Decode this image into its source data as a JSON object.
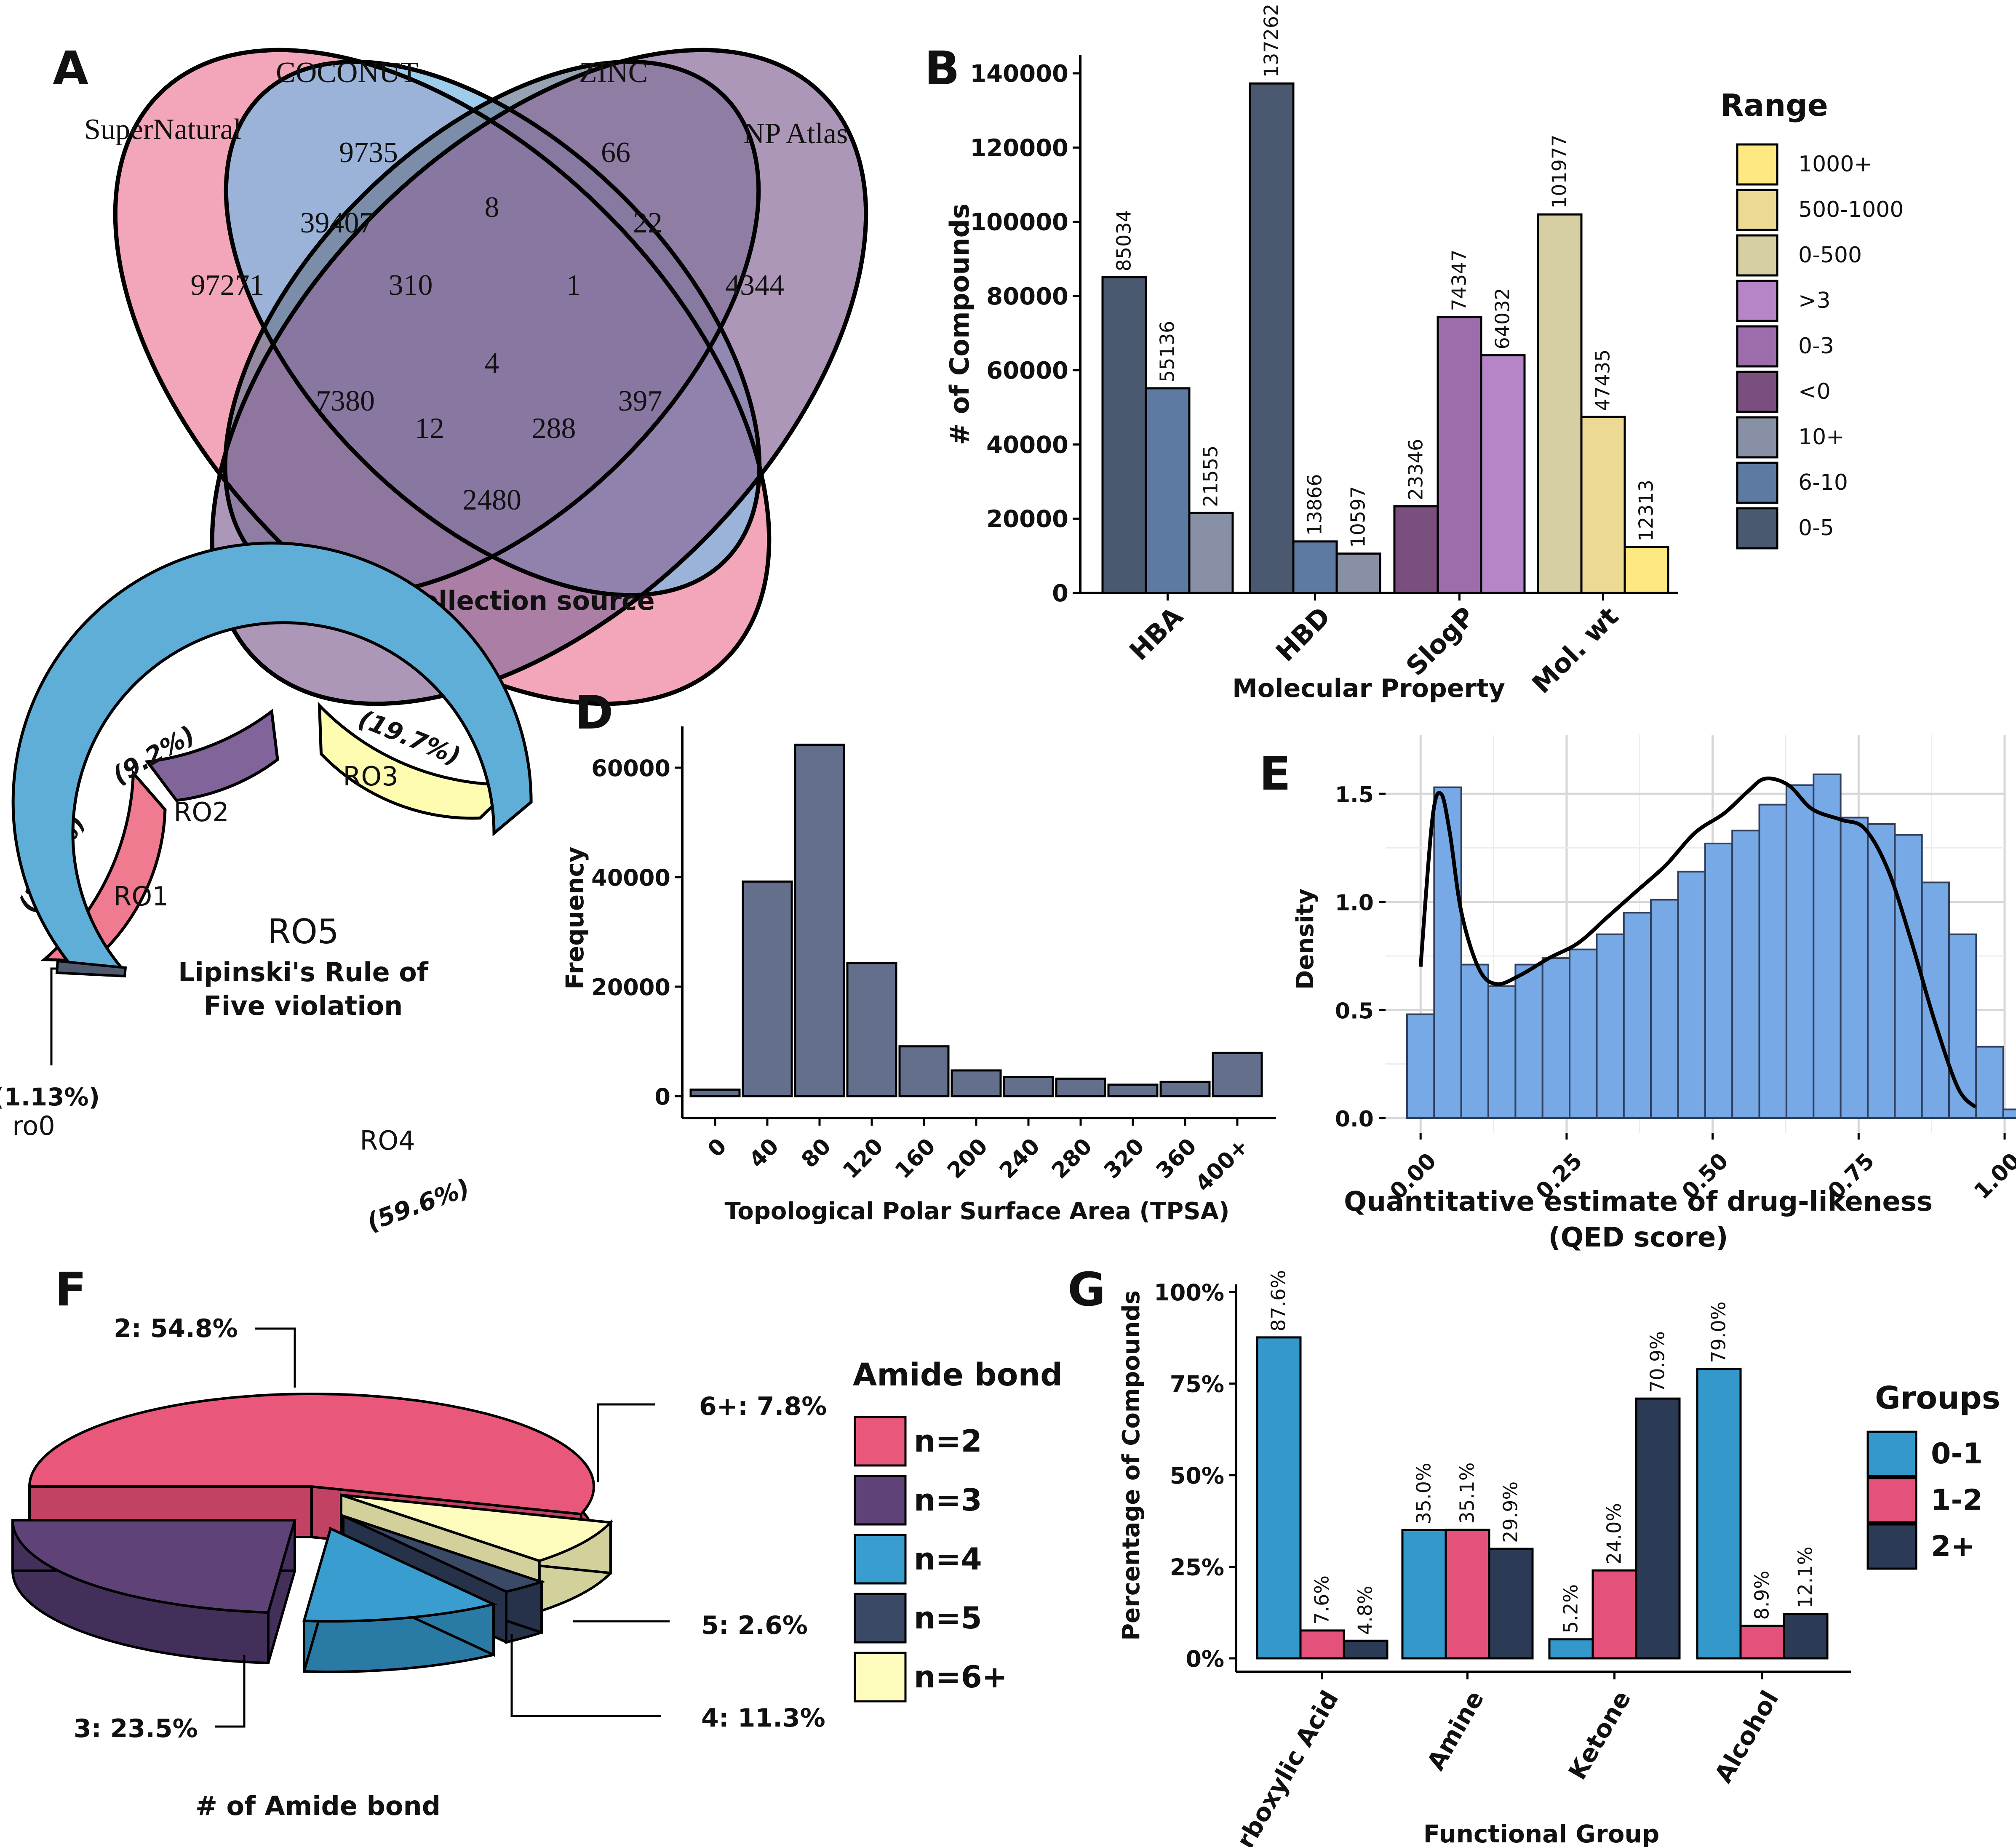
{
  "panels": {
    "A": {
      "letter": "A",
      "xlabel": "Data collection source",
      "sets": [
        {
          "name": "SuperNatural",
          "color": "#f08ca6"
        },
        {
          "name": "COCONUT",
          "color": "#78b9e3"
        },
        {
          "name": "ZINC",
          "color": "#6f7e96"
        },
        {
          "name": "NP Atlas",
          "color": "#8d6f9d"
        }
      ],
      "regions": [
        {
          "label": "SuperNatural only",
          "value": "97271"
        },
        {
          "label": "COCONUT only",
          "value": "9735"
        },
        {
          "label": "ZINC only",
          "value": "66"
        },
        {
          "label": "NP Atlas only",
          "value": "4344"
        },
        {
          "label": "SN+COCONUT",
          "value": "39407"
        },
        {
          "label": "COCONUT+ZINC",
          "value": "8"
        },
        {
          "label": "ZINC+NPA",
          "value": "22"
        },
        {
          "label": "SN+COCONUT+ZINC",
          "value": "310"
        },
        {
          "label": "COCONUT+ZINC+NPA",
          "value": "1"
        },
        {
          "label": "All four",
          "value": "4"
        },
        {
          "label": "SN+ZINC",
          "value": "7380"
        },
        {
          "label": "COCONUT+NPA",
          "value": "397"
        },
        {
          "label": "SN+ZINC+NPA",
          "value": "12"
        },
        {
          "label": "SN+COCONUT+NPA",
          "value": "288"
        },
        {
          "label": "SN+NPA",
          "value": "2480"
        }
      ]
    },
    "B": {
      "letter": "B",
      "legend_title": "Range",
      "legend": [
        {
          "label": "1000+",
          "color": "#fde881"
        },
        {
          "label": "500-1000",
          "color": "#ecd993"
        },
        {
          "label": "0-500",
          "color": "#d6cfa4"
        },
        {
          "label": ">3",
          "color": "#b585c8"
        },
        {
          "label": "0-3",
          "color": "#9d6cad"
        },
        {
          "label": "<0",
          "color": "#7a4f7e"
        },
        {
          "label": "10+",
          "color": "#8790a4"
        },
        {
          "label": "6-10",
          "color": "#5d7ba2"
        },
        {
          "label": "0-5",
          "color": "#4a5970"
        }
      ]
    },
    "C": {
      "letter": "C",
      "center_title": "RO5",
      "center_sub1": "Lipinski's Rule of",
      "center_sub2": "Five violation",
      "segments": [
        {
          "label": "RO1",
          "pct": "(10.4%)",
          "color": "#f07a8f"
        },
        {
          "label": "RO2",
          "pct": "(9.2%)",
          "color": "#80649a"
        },
        {
          "label": "RO3",
          "pct": "(19.7%)",
          "color": "#fdfcb0"
        },
        {
          "label": "RO4",
          "pct": "(59.6%)",
          "color": "#5eaed8"
        },
        {
          "label": "ro0",
          "pct": "(1.13%)",
          "color": "#4f5a6f"
        }
      ]
    },
    "D": {
      "letter": "D"
    },
    "E": {
      "letter": "E"
    },
    "F": {
      "letter": "F",
      "xlabel": "# of Amide bond",
      "legend_title": "Amide bond",
      "slices": [
        {
          "legend": "n=2",
          "label": "2: 54.8%",
          "value": 54.8,
          "color": "#e9587a"
        },
        {
          "legend": "n=3",
          "label": "3: 23.5%",
          "value": 23.5,
          "color": "#5e4278"
        },
        {
          "legend": "n=4",
          "label": "4: 11.3%",
          "value": 11.3,
          "color": "#3a9dd0"
        },
        {
          "legend": "n=5",
          "label": "5: 2.6%",
          "value": 2.6,
          "color": "#3a4a66"
        },
        {
          "legend": "n=6+",
          "label": "6+: 7.8%",
          "value": 7.8,
          "color": "#fdfcbd"
        }
      ]
    },
    "G": {
      "letter": "G",
      "legend_title": "Groups"
    }
  },
  "chart_data": [
    {
      "panel": "B",
      "type": "bar",
      "xlabel": "Molecular Property",
      "ylabel": "# of Compounds",
      "ylim": [
        0,
        145000
      ],
      "yticks": [
        0,
        20000,
        40000,
        60000,
        80000,
        100000,
        120000,
        140000
      ],
      "groups": [
        {
          "name": "HBA",
          "bars": [
            {
              "range": "0-5",
              "value": 85034,
              "color": "#4a5970"
            },
            {
              "range": "6-10",
              "value": 55136,
              "color": "#5d7ba2"
            },
            {
              "range": "10+",
              "value": 21555,
              "color": "#8790a4"
            }
          ]
        },
        {
          "name": "HBD",
          "bars": [
            {
              "range": "0-5",
              "value": 137262,
              "color": "#4a5970"
            },
            {
              "range": "6-10",
              "value": 13866,
              "color": "#5d7ba2"
            },
            {
              "range": "10+",
              "value": 10597,
              "color": "#8790a4"
            }
          ]
        },
        {
          "name": "SlogP",
          "bars": [
            {
              "range": "<0",
              "value": 23346,
              "color": "#7a4f7e"
            },
            {
              "range": "0-3",
              "value": 74347,
              "color": "#9d6cad"
            },
            {
              "range": ">3",
              "value": 64032,
              "color": "#b585c8"
            }
          ]
        },
        {
          "name": "Mol. wt",
          "bars": [
            {
              "range": "0-500",
              "value": 101977,
              "color": "#d6cfa4"
            },
            {
              "range": "500-1000",
              "value": 47435,
              "color": "#ecd993"
            },
            {
              "range": "1000+",
              "value": 12313,
              "color": "#fde881"
            }
          ]
        }
      ]
    },
    {
      "panel": "D",
      "type": "bar",
      "xlabel": "Topological Polar Surface Area (TPSA)",
      "ylabel": "Frequency",
      "ylim": [
        0,
        67000
      ],
      "yticks": [
        0,
        20000,
        40000,
        60000
      ],
      "categories": [
        "0",
        "40",
        "80",
        "120",
        "160",
        "200",
        "240",
        "280",
        "320",
        "360",
        "400+"
      ],
      "values": [
        1200,
        39200,
        64200,
        24300,
        9100,
        4700,
        3500,
        3200,
        2100,
        2600,
        7900
      ],
      "color": "#636f8b"
    },
    {
      "panel": "E",
      "type": "bar",
      "xlabel": "Quantitative estimate of drug-likeness",
      "xlabel2": "(QED score)",
      "ylabel": "Density",
      "xlim": [
        -0.06,
        1.0
      ],
      "ylim": [
        0,
        1.65
      ],
      "xticks": [
        "0.00",
        "0.25",
        "0.50",
        "0.75",
        "1.00"
      ],
      "yticks": [
        "0.0",
        "0.5",
        "1.0",
        "1.5"
      ],
      "grid": true,
      "bin_width": 0.0464,
      "bin_start": -0.0232,
      "values": [
        0.48,
        1.53,
        0.71,
        0.61,
        0.71,
        0.74,
        0.78,
        0.85,
        0.95,
        1.01,
        1.14,
        1.27,
        1.33,
        1.45,
        1.54,
        1.59,
        1.39,
        1.36,
        1.31,
        1.09,
        0.85,
        0.33,
        0.04
      ],
      "color": "#77a9e6",
      "curve": {
        "x": [
          0.0,
          0.02,
          0.035,
          0.05,
          0.07,
          0.1,
          0.13,
          0.17,
          0.22,
          0.27,
          0.32,
          0.37,
          0.42,
          0.47,
          0.52,
          0.56,
          0.59,
          0.63,
          0.67,
          0.72,
          0.76,
          0.8,
          0.84,
          0.88,
          0.92,
          0.95
        ],
        "y": [
          0.7,
          1.38,
          1.5,
          1.32,
          0.95,
          0.69,
          0.62,
          0.66,
          0.74,
          0.81,
          0.93,
          1.05,
          1.17,
          1.32,
          1.41,
          1.51,
          1.57,
          1.54,
          1.43,
          1.38,
          1.34,
          1.15,
          0.82,
          0.45,
          0.14,
          0.05
        ]
      }
    },
    {
      "panel": "G",
      "type": "bar",
      "xlabel": "Functional Group",
      "ylabel": "Percentage of Compounds",
      "ylim": [
        0,
        100
      ],
      "yticks": [
        "0%",
        "25%",
        "50%",
        "75%",
        "100%"
      ],
      "series": [
        {
          "name": "0-1",
          "color": "#3498cb",
          "values": [
            87.6,
            35.0,
            5.2,
            79.0
          ]
        },
        {
          "name": "1-2",
          "color": "#e4527b",
          "values": [
            7.6,
            35.1,
            24.0,
            8.9
          ]
        },
        {
          "name": "2+",
          "color": "#2b3a55",
          "values": [
            4.8,
            29.9,
            70.9,
            12.1
          ]
        }
      ],
      "categories": [
        "Carboxylic Acid",
        "Amine",
        "Ketone",
        "Alcohol"
      ],
      "labels": [
        [
          "87.6%",
          "7.6%",
          "4.8%"
        ],
        [
          "35.0%",
          "35.1%",
          "29.9%"
        ],
        [
          "5.2%",
          "24.0%",
          "70.9%"
        ],
        [
          "79.0%",
          "8.9%",
          "12.1%"
        ]
      ]
    }
  ]
}
